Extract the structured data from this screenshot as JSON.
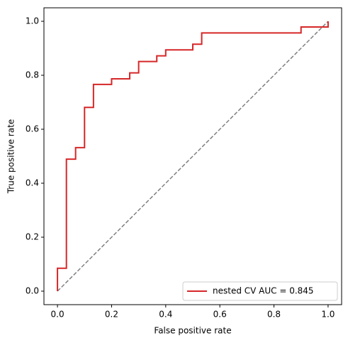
{
  "chart_data": {
    "type": "line",
    "xlabel": "False positive rate",
    "ylabel": "True positive rate",
    "xlim": [
      -0.05,
      1.05
    ],
    "ylim": [
      -0.05,
      1.05
    ],
    "xticks": [
      {
        "value": 0,
        "label": "0.0"
      },
      0.2,
      0.4,
      0.6,
      0.8,
      {
        "value": 1,
        "label": "1.0"
      }
    ],
    "yticks": [
      {
        "value": 0,
        "label": "0.0"
      },
      0.2,
      0.4,
      0.6,
      0.8,
      {
        "value": 1,
        "label": "1.0"
      }
    ],
    "series": [
      {
        "name": "nested CV AUC = 0.845",
        "color": "#d62728",
        "x": [
          0,
          0,
          0.033,
          0.033,
          0.067,
          0.067,
          0.1,
          0.1,
          0.133,
          0.133,
          0.2,
          0.2,
          0.267,
          0.267,
          0.3,
          0.3,
          0.367,
          0.367,
          0.4,
          0.4,
          0.5,
          0.5,
          0.533,
          0.533,
          0.9,
          0.9,
          1,
          1
        ],
        "values": [
          0,
          0.085,
          0.085,
          0.489,
          0.489,
          0.532,
          0.532,
          0.681,
          0.681,
          0.766,
          0.766,
          0.787,
          0.787,
          0.809,
          0.809,
          0.851,
          0.851,
          0.872,
          0.872,
          0.894,
          0.894,
          0.915,
          0.915,
          0.957,
          0.957,
          0.979,
          0.979,
          1
        ]
      }
    ],
    "diagonal": {
      "x": [
        0,
        1
      ],
      "values": [
        0,
        1
      ],
      "color": "#808080",
      "dashed": true
    },
    "legend": "lower right"
  }
}
